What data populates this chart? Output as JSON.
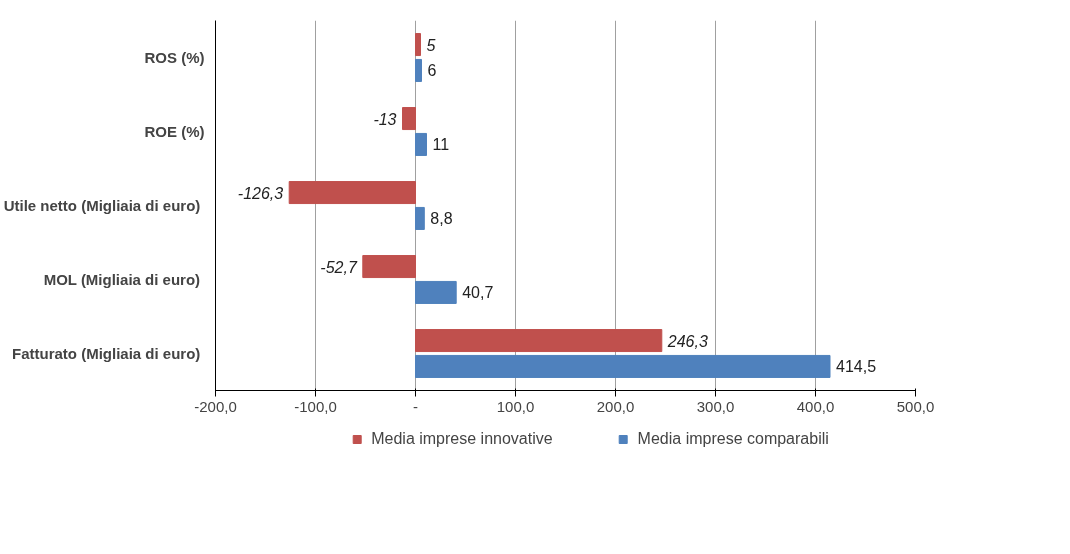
{
  "chart_data": {
    "type": "bar",
    "orientation": "horizontal",
    "categories": [
      "ROS (%)",
      "ROE (%)",
      "Utile netto (Migliaia  di euro)",
      "MOL (Migliaia  di euro)",
      "Fatturato (Migliaia  di euro)"
    ],
    "series": [
      {
        "name": "Media imprese innovative",
        "color": "#c0504d",
        "values": [
          5,
          -13,
          -126.3,
          -52.7,
          246.3
        ],
        "value_labels": [
          "5",
          "-13",
          "-126,3",
          "-52,7",
          "246,3"
        ]
      },
      {
        "name": "Media imprese comparabili",
        "color": "#4f81bd",
        "values": [
          6,
          11,
          8.8,
          40.7,
          414.5
        ],
        "value_labels": [
          "6",
          "11",
          "8,8",
          "40,7",
          "414,5"
        ]
      }
    ],
    "xlim": [
      -200,
      500
    ],
    "xticks": [
      {
        "value": -200,
        "label": "-200,0"
      },
      {
        "value": -100,
        "label": "-100,0"
      },
      {
        "value": 0,
        "label": "-"
      },
      {
        "value": 100,
        "label": "100,0"
      },
      {
        "value": 200,
        "label": "200,0"
      },
      {
        "value": 300,
        "label": "300,0"
      },
      {
        "value": 400,
        "label": "400,0"
      },
      {
        "value": 500,
        "label": "500,0"
      }
    ],
    "grid": "x",
    "legend": "bottom"
  }
}
